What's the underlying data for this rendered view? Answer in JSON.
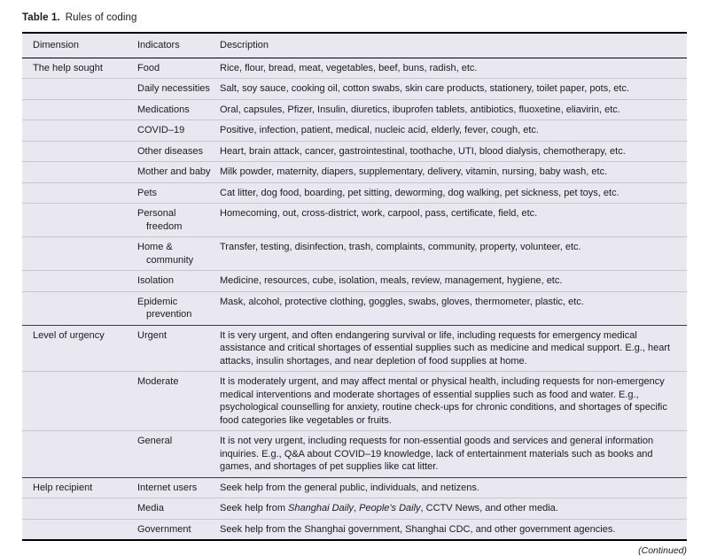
{
  "caption": {
    "label": "Table 1.",
    "text": "Rules of coding"
  },
  "footer": {
    "continued": "(Continued)"
  },
  "table": {
    "headers": [
      "Dimension",
      "Indicators",
      "Description"
    ],
    "groups": [
      {
        "dimension": "The help sought",
        "rows": [
          {
            "indicator": "Food",
            "description": "Rice, flour, bread, meat, vegetables, beef, buns, radish, etc."
          },
          {
            "indicator": "Daily necessities",
            "description": "Salt, soy sauce, cooking oil, cotton swabs, skin care products, stationery, toilet paper, pots, etc."
          },
          {
            "indicator": "Medications",
            "description": "Oral, capsules, Pfizer, Insulin, diuretics, ibuprofen tablets, antibiotics, fluoxetine, eliavirin, etc."
          },
          {
            "indicator": "COVID–19",
            "description": "Positive, infection, patient, medical, nucleic acid, elderly, fever, cough, etc."
          },
          {
            "indicator": "Other diseases",
            "description": "Heart, brain attack, cancer, gastrointestinal, toothache, UTI, blood dialysis, chemotherapy, etc."
          },
          {
            "indicator": "Mother and baby",
            "description": "Milk powder, maternity, diapers, supplementary, delivery, vitamin, nursing, baby wash, etc."
          },
          {
            "indicator": "Pets",
            "description": "Cat litter, dog food, boarding, pet sitting, deworming, dog walking, pet sickness, pet toys, etc."
          },
          {
            "indicator": "Personal freedom",
            "description": "Homecoming, out, cross-district, work, carpool, pass, certificate, field, etc."
          },
          {
            "indicator": "Home & community",
            "description": "Transfer, testing, disinfection, trash, complaints, community, property, volunteer, etc."
          },
          {
            "indicator": "Isolation",
            "description": "Medicine, resources, cube, isolation, meals, review, management, hygiene, etc."
          },
          {
            "indicator": "Epidemic prevention",
            "description": "Mask, alcohol, protective clothing, goggles, swabs, gloves, thermometer, plastic, etc."
          }
        ]
      },
      {
        "dimension": "Level of urgency",
        "rows": [
          {
            "indicator": "Urgent",
            "description": "It is very urgent, and often endangering survival or life, including requests for emergency medical assistance and critical shortages of essential supplies such as medicine and medical support. E.g., heart attacks, insulin shortages, and near depletion of food supplies at home."
          },
          {
            "indicator": "Moderate",
            "description": "It is moderately urgent, and may affect mental or physical health, including requests for non-emergency medical interventions and moderate shortages of essential supplies such as food and water. E.g., psychological counselling for anxiety, routine check-ups for chronic conditions, and shortages of specific food categories like vegetables or fruits."
          },
          {
            "indicator": "General",
            "description": "It is not very urgent, including requests for non-essential goods and services and general information inquiries. E.g., Q&A about COVID–19 knowledge, lack of entertainment materials such as books and games, and shortages of pet supplies like cat litter."
          }
        ]
      },
      {
        "dimension": "Help recipient",
        "rows": [
          {
            "indicator": "Internet users",
            "description": "Seek help from the general public, individuals, and netizens."
          },
          {
            "indicator": "Media",
            "description_parts": [
              {
                "text": "Seek help from ",
                "italic": false
              },
              {
                "text": "Shanghai Daily",
                "italic": true
              },
              {
                "text": ", ",
                "italic": false
              },
              {
                "text": "People's Daily",
                "italic": true
              },
              {
                "text": ", CCTV News, and other media.",
                "italic": false
              }
            ]
          },
          {
            "indicator": "Government",
            "description": "Seek help from the Shanghai government, Shanghai CDC, and other government agencies."
          }
        ]
      }
    ]
  }
}
